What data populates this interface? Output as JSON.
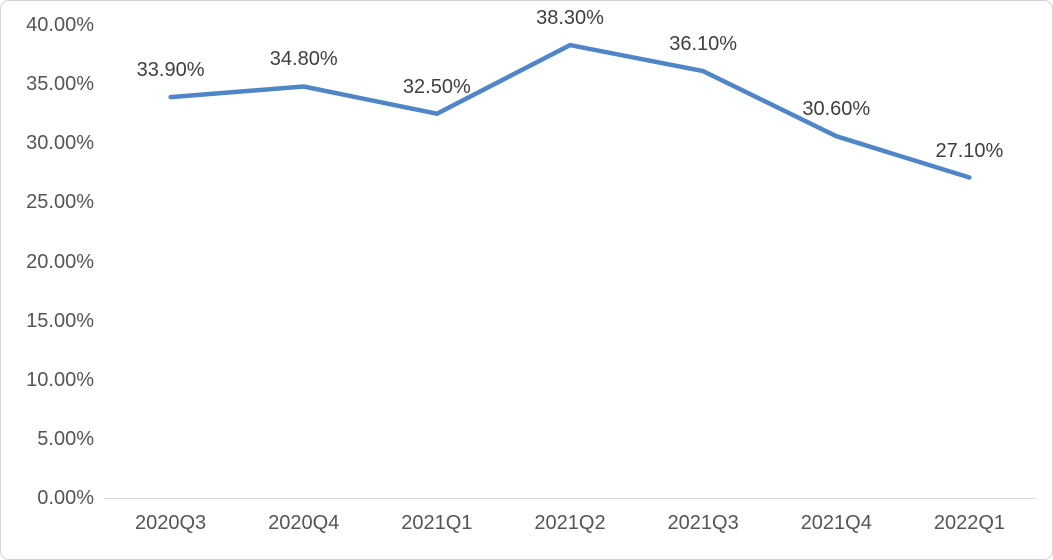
{
  "chart_data": {
    "type": "line",
    "title": "",
    "xlabel": "",
    "ylabel": "",
    "categories": [
      "2020Q3",
      "2020Q4",
      "2021Q1",
      "2021Q2",
      "2021Q3",
      "2021Q4",
      "2022Q1"
    ],
    "values": [
      33.9,
      34.8,
      32.5,
      38.3,
      36.1,
      30.6,
      27.1
    ],
    "data_labels": [
      "33.90%",
      "34.80%",
      "32.50%",
      "38.30%",
      "36.10%",
      "30.60%",
      "27.10%"
    ],
    "y_tick_labels": [
      "40.00%",
      "35.00%",
      "30.00%",
      "25.00%",
      "20.00%",
      "15.00%",
      "10.00%",
      "5.00%",
      "0.00%"
    ],
    "y_tick_values": [
      40,
      35,
      30,
      25,
      20,
      15,
      10,
      5,
      0
    ],
    "ylim": [
      0,
      40
    ],
    "grid": false,
    "legend": null,
    "colors": {
      "line": "#4e86c8",
      "axis_line": "#d9d9d9",
      "axis_text": "#555555",
      "data_label_text": "#3f3f3f",
      "frame_border": "#d3d3d3",
      "background": "#ffffff"
    }
  }
}
